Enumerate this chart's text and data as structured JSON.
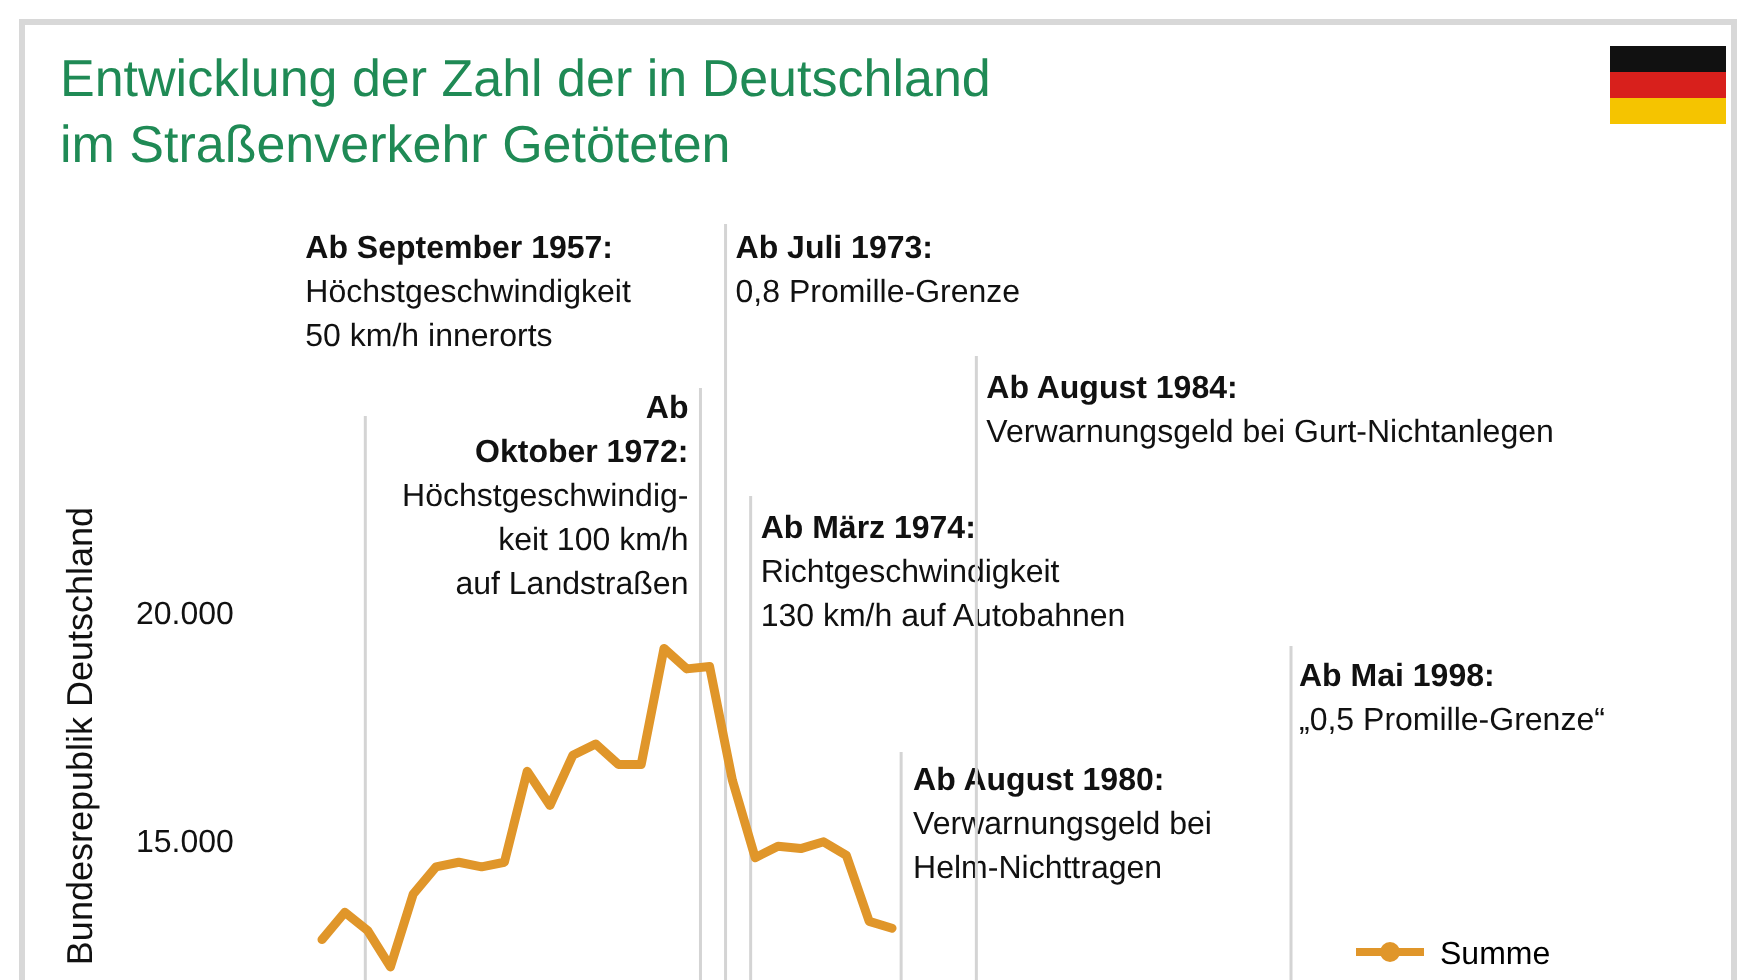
{
  "chart_data": {
    "type": "line",
    "title": "Entwicklung der Zahl der in Deutschland\nim Straßenverkehr Getöteten",
    "ylabel": "Bundesrepublik Deutschland",
    "categories": [
      null,
      null,
      null,
      null,
      null,
      null,
      null,
      null,
      null,
      null,
      null,
      null,
      null,
      null,
      null,
      null,
      null,
      null,
      null,
      null,
      null,
      null,
      null,
      null,
      null,
      null
    ],
    "series": [
      {
        "name": "Summe",
        "color": "#e0962a",
        "values": [
          12800,
          13400,
          13000,
          12200,
          13800,
          14400,
          14500,
          14400,
          14500,
          16500,
          15750,
          16850,
          17100,
          16650,
          16650,
          19200,
          18750,
          18800,
          16300,
          14600,
          14850,
          14800,
          14950,
          14650,
          13200,
          13050
        ]
      }
    ],
    "ylim": [
      12000,
      20000
    ],
    "yticks": [
      {
        "value": 15000,
        "label": "15.000"
      },
      {
        "value": 20000,
        "label": "20.000"
      }
    ],
    "tick_labels": "y",
    "grid": false,
    "legend": "bottom right",
    "ref_lines": [
      {
        "axis": "x",
        "label": "Ab September 1957:\nHöchstgeschwindigkeit\n50 km/h innerorts",
        "color": "#d4d4d4"
      },
      {
        "axis": "x",
        "label": "Ab\nOktober 1972:\nHöchstgeschwindig-\nkeit 100 km/h\nauf Landstraßen",
        "color": "#d4d4d4"
      },
      {
        "axis": "x",
        "label": "Ab Juli 1973:\n0,8 Promille-Grenze",
        "color": "#d4d4d4"
      },
      {
        "axis": "x",
        "label": "Ab März 1974:\nRichtgeschwindigkeit\n130 km/h auf Autobahnen",
        "color": "#d4d4d4"
      },
      {
        "axis": "x",
        "label": "Ab August 1980:\nVerwarnungsgeld bei\nHelm-Nichttragen",
        "color": "#d4d4d4"
      },
      {
        "axis": "x",
        "label": "Ab August 1984:\nVerwarnungsgeld bei Gurt-Nichtanlegen",
        "color": "#d4d4d4"
      },
      {
        "axis": "x",
        "label": "Ab Mai 1998:\n„0,5 Promille-Grenze“",
        "color": "#d4d4d4"
      }
    ]
  }
}
